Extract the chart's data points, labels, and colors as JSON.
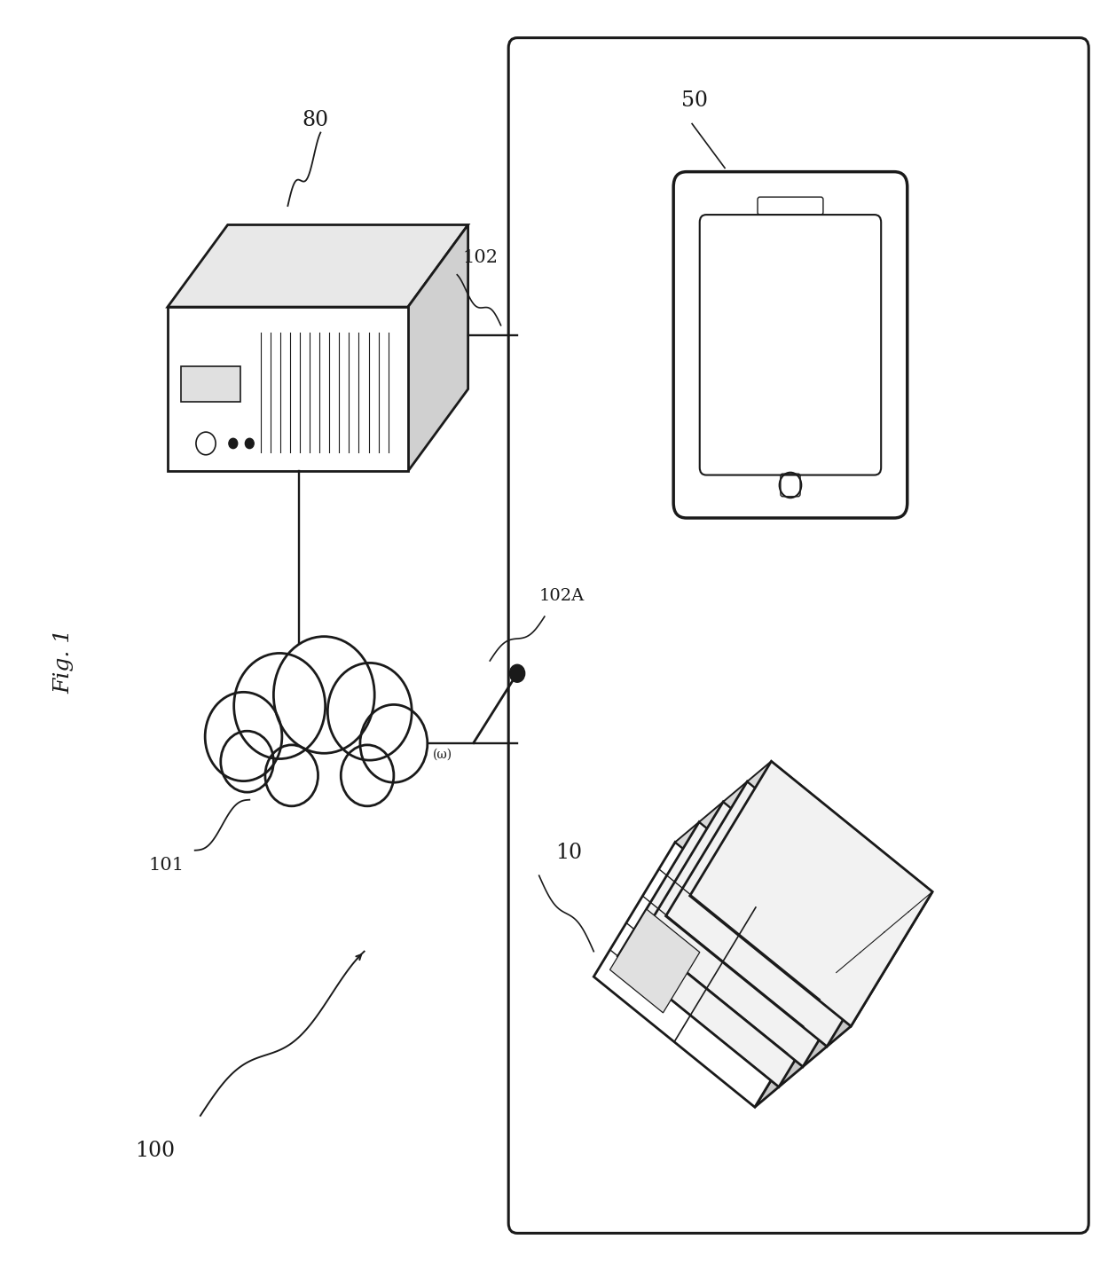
{
  "bg_color": "#ffffff",
  "line_color": "#1a1a1a",
  "fig_label": "Fig. 1",
  "label_100": "100",
  "label_80": "80",
  "label_101": "101",
  "label_102": "102",
  "label_102A": "102A",
  "label_50": "50",
  "label_10": "10",
  "font_size_labels": 15
}
